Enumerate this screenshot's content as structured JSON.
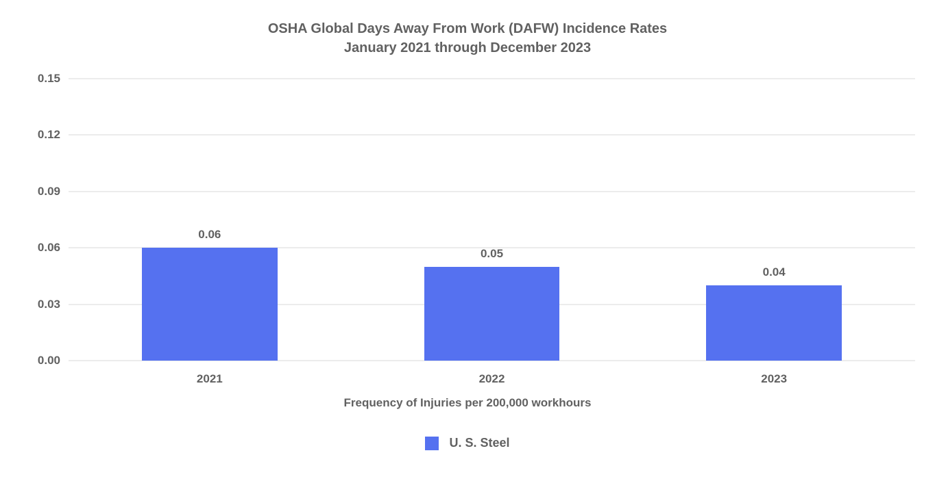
{
  "chart_data": {
    "type": "bar",
    "title": "OSHA Global Days Away From Work (DAFW) Incidence Rates",
    "subtitle": "January 2021 through December 2023",
    "categories": [
      "2021",
      "2022",
      "2023"
    ],
    "series": [
      {
        "name": "U. S. Steel",
        "values": [
          0.06,
          0.05,
          0.04
        ]
      }
    ],
    "value_labels": [
      "0.06",
      "0.05",
      "0.04"
    ],
    "xlabel": "Frequency of Injuries per 200,000 workhours",
    "ylabel": "",
    "ylim": [
      0,
      0.15
    ],
    "yticks": [
      0,
      0.03,
      0.06,
      0.09,
      0.12,
      0.15
    ],
    "ytick_labels": [
      "0.00",
      "0.03",
      "0.06",
      "0.09",
      "0.12",
      "0.15"
    ],
    "grid": true,
    "legend_position": "bottom",
    "bar_color": "#5571f0",
    "text_color": "#616161",
    "gridline_color": "#ececec",
    "bar_width_fraction": 0.16
  }
}
